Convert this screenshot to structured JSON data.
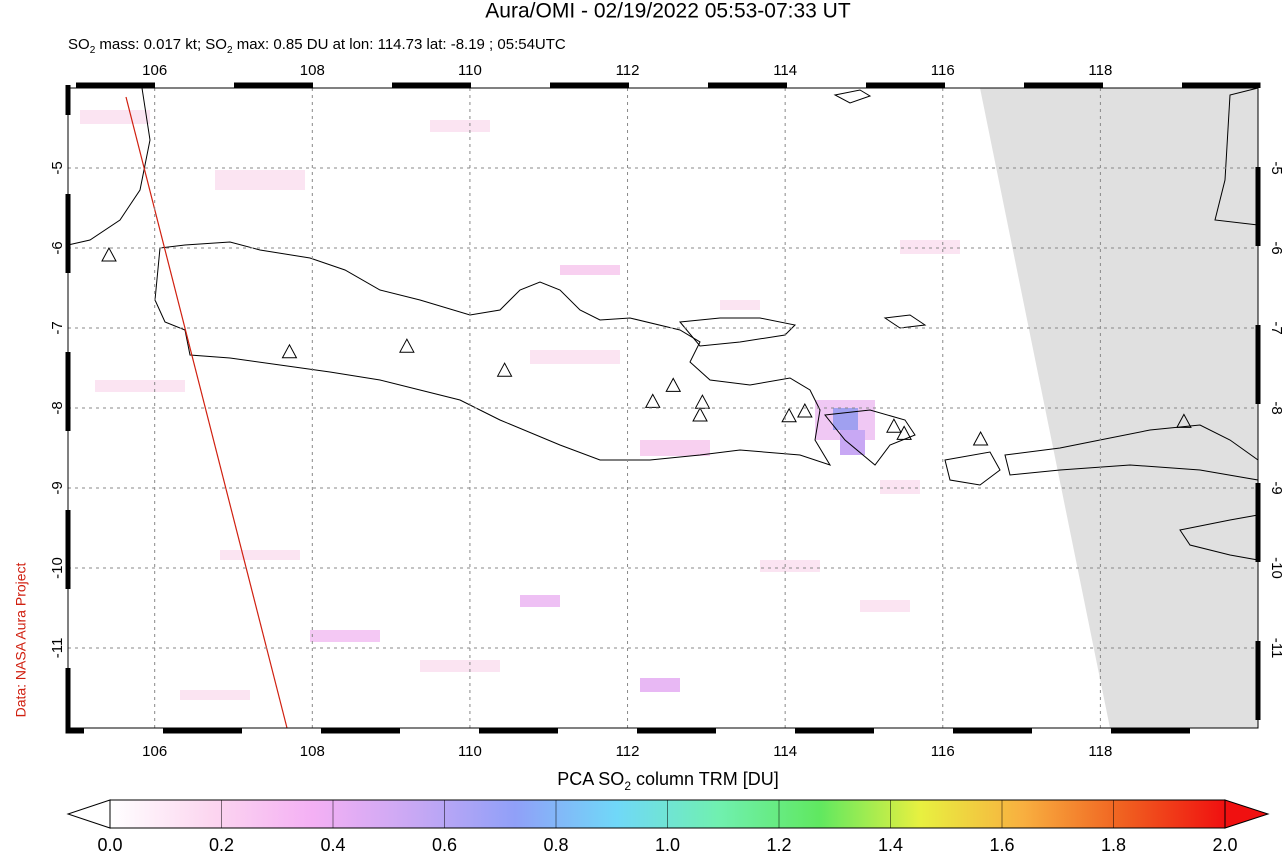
{
  "chart_data": {
    "type": "map",
    "title": "Aura/OMI - 02/19/2022 05:53-07:33 UT",
    "subtitle_parts": [
      "SO",
      "2",
      " mass: 0.017 kt; SO",
      "2",
      " max: 0.85 DU at lon: 114.73 lat: -8.19 ; 05:54UTC"
    ],
    "credit": "Data: NASA Aura Project",
    "xlim": [
      104.9,
      120
    ],
    "ylim": [
      -12,
      -4
    ],
    "xticks": [
      106,
      108,
      110,
      112,
      114,
      116,
      118
    ],
    "yticks": [
      -5,
      -6,
      -7,
      -8,
      -9,
      -10,
      -11
    ],
    "grid": true,
    "volcanoes": {
      "lon": [
        105.42,
        107.71,
        109.2,
        110.44,
        112.32,
        112.58,
        112.95,
        112.92,
        114.05,
        114.25,
        115.38,
        115.51,
        116.48,
        119.06
      ],
      "lat": [
        -6.1,
        -7.31,
        -7.24,
        -7.54,
        -7.93,
        -7.73,
        -7.94,
        -8.1,
        -8.11,
        -8.05,
        -8.24,
        -8.33,
        -8.4,
        -8.18
      ]
    },
    "colorbar": {
      "label_parts": [
        "PCA SO",
        "2",
        " column TRM [DU]"
      ],
      "range": [
        0,
        2
      ],
      "ticks": [
        {
          "value": 0,
          "label": "0.0"
        },
        {
          "value": 0.2,
          "label": "0.2"
        },
        {
          "value": 0.4,
          "label": "0.4"
        },
        {
          "value": 0.6,
          "label": "0.6"
        },
        {
          "value": 0.8,
          "label": "0.8"
        },
        {
          "value": 1,
          "label": "1.0"
        },
        {
          "value": 1.2,
          "label": "1.2"
        },
        {
          "value": 1.4,
          "label": "1.4"
        },
        {
          "value": 1.6,
          "label": "1.6"
        },
        {
          "value": 1.8,
          "label": "1.8"
        },
        {
          "value": 2,
          "label": "2.0"
        }
      ],
      "colors": [
        "#ffffff",
        "#fcd6f0",
        "#f4b0f4",
        "#c8a8f4",
        "#90a0f8",
        "#70d8f8",
        "#70f0b0",
        "#60e860",
        "#e8f040",
        "#f8b040",
        "#f06020",
        "#f01010"
      ]
    }
  }
}
